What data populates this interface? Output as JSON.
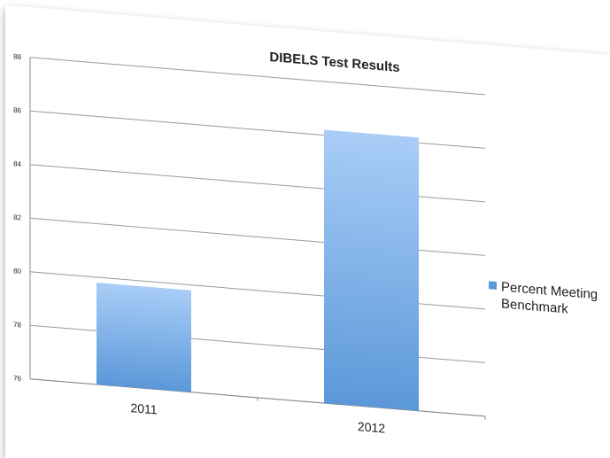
{
  "chart_data": {
    "type": "bar",
    "title": "DIBELS Test Results",
    "xlabel": "",
    "ylabel": "",
    "categories": [
      "2011",
      "2012"
    ],
    "series": [
      {
        "name": "Percent Meeting Benchmark",
        "values": [
          79.8,
          86.2
        ]
      }
    ],
    "ylim": [
      76,
      88
    ],
    "yticks": [
      "76",
      "78",
      "80",
      "82",
      "84",
      "86",
      "88"
    ],
    "grid": true,
    "legend_position": "right",
    "legend_lines": [
      "Percent Meeting",
      "Benchmark"
    ],
    "colors": {
      "bar_top": "#a9cdf7",
      "bar_bottom": "#5b98d9",
      "legend_swatch": "#5b98d9",
      "grid": "#9a9a9a",
      "text": "#222222"
    }
  }
}
